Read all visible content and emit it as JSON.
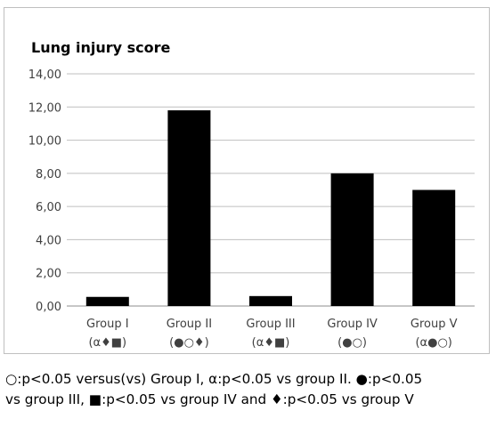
{
  "chart_data": {
    "type": "bar",
    "title": "Lung injury score",
    "xlabel": "",
    "ylabel": "",
    "ylim": [
      0,
      14
    ],
    "yticks": [
      "0,00",
      "2,00",
      "4,00",
      "6,00",
      "8,00",
      "10,00",
      "12,00",
      "14,00"
    ],
    "ytick_values": [
      0,
      2,
      4,
      6,
      8,
      10,
      12,
      14
    ],
    "categories": [
      "Group I",
      "Group II",
      "Group III",
      "Group IV",
      "Group V"
    ],
    "category_annotations": [
      "(α♦■)",
      "(●○♦)",
      "(α♦■)",
      "(●○)",
      "(α●○)"
    ],
    "values": [
      0.55,
      11.8,
      0.6,
      8.0,
      7.0
    ],
    "bar_color": "#000000",
    "grid": true,
    "legend": "none"
  },
  "caption": {
    "line1": "○:p<0.05 versus(vs) Group I, α:p<0.05 vs group II. ●:p<0.05",
    "line2": "vs group III, ■:p<0.05 vs group IV and ♦:p<0.05 vs group V"
  }
}
